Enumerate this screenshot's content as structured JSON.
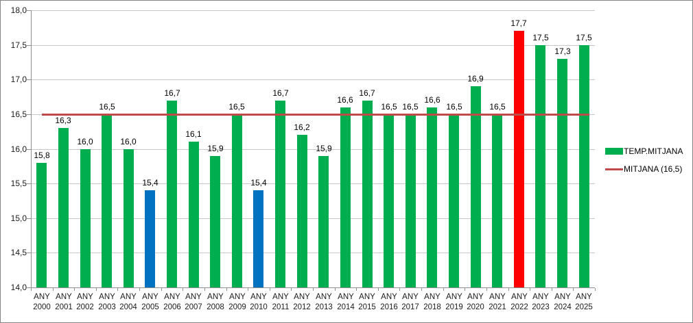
{
  "chart_data": {
    "type": "bar",
    "title": "",
    "category_prefix": "ANY",
    "categories": [
      "2000",
      "2001",
      "2002",
      "2003",
      "2004",
      "2005",
      "2006",
      "2007",
      "2008",
      "2009",
      "2010",
      "2011",
      "2012",
      "2013",
      "2014",
      "2015",
      "2016",
      "2017",
      "2018",
      "2019",
      "2020",
      "2021",
      "2022",
      "2023",
      "2024",
      "2025"
    ],
    "values": [
      15.8,
      16.3,
      16.0,
      16.5,
      16.0,
      15.4,
      16.7,
      16.1,
      15.9,
      16.5,
      15.4,
      16.7,
      16.2,
      15.9,
      16.6,
      16.7,
      16.5,
      16.5,
      16.6,
      16.5,
      16.9,
      16.5,
      17.7,
      17.5,
      17.3,
      17.5
    ],
    "value_labels": [
      "15,8",
      "16,3",
      "16,0",
      "16,5",
      "16,0",
      "15,4",
      "16,7",
      "16,1",
      "15,9",
      "16,5",
      "15,4",
      "16,7",
      "16,2",
      "15,9",
      "16,6",
      "16,7",
      "16,5",
      "16,5",
      "16,6",
      "16,5",
      "16,9",
      "16,5",
      "17,7",
      "17,5",
      "17,3",
      "17,5"
    ],
    "blue_years": [
      "2005",
      "2010"
    ],
    "red_years": [
      "2022"
    ],
    "ylim": [
      14.0,
      18.0
    ],
    "ytick_step": 0.5,
    "ytick_labels": [
      "14,0",
      "14,5",
      "15,0",
      "15,5",
      "16,0",
      "16,5",
      "17,0",
      "17,5",
      "18,0"
    ],
    "decimal_separator": ",",
    "grid": true,
    "mean_line": {
      "value": 16.5
    },
    "legend": {
      "position": "right",
      "items": [
        {
          "label": "TEMP.MITJANA",
          "swatch": "bar",
          "color": "#00AE50"
        },
        {
          "label": "MITJANA (16,5)",
          "swatch": "line",
          "color": "#BE4B48"
        }
      ]
    },
    "colors": {
      "bar_green": "#00AE50",
      "bar_blue": "#0072C0",
      "bar_red": "#FF0000",
      "mean_line": "#BE4B48",
      "gridline": "#C6C6C6",
      "axis": "#8E8E8E"
    }
  }
}
